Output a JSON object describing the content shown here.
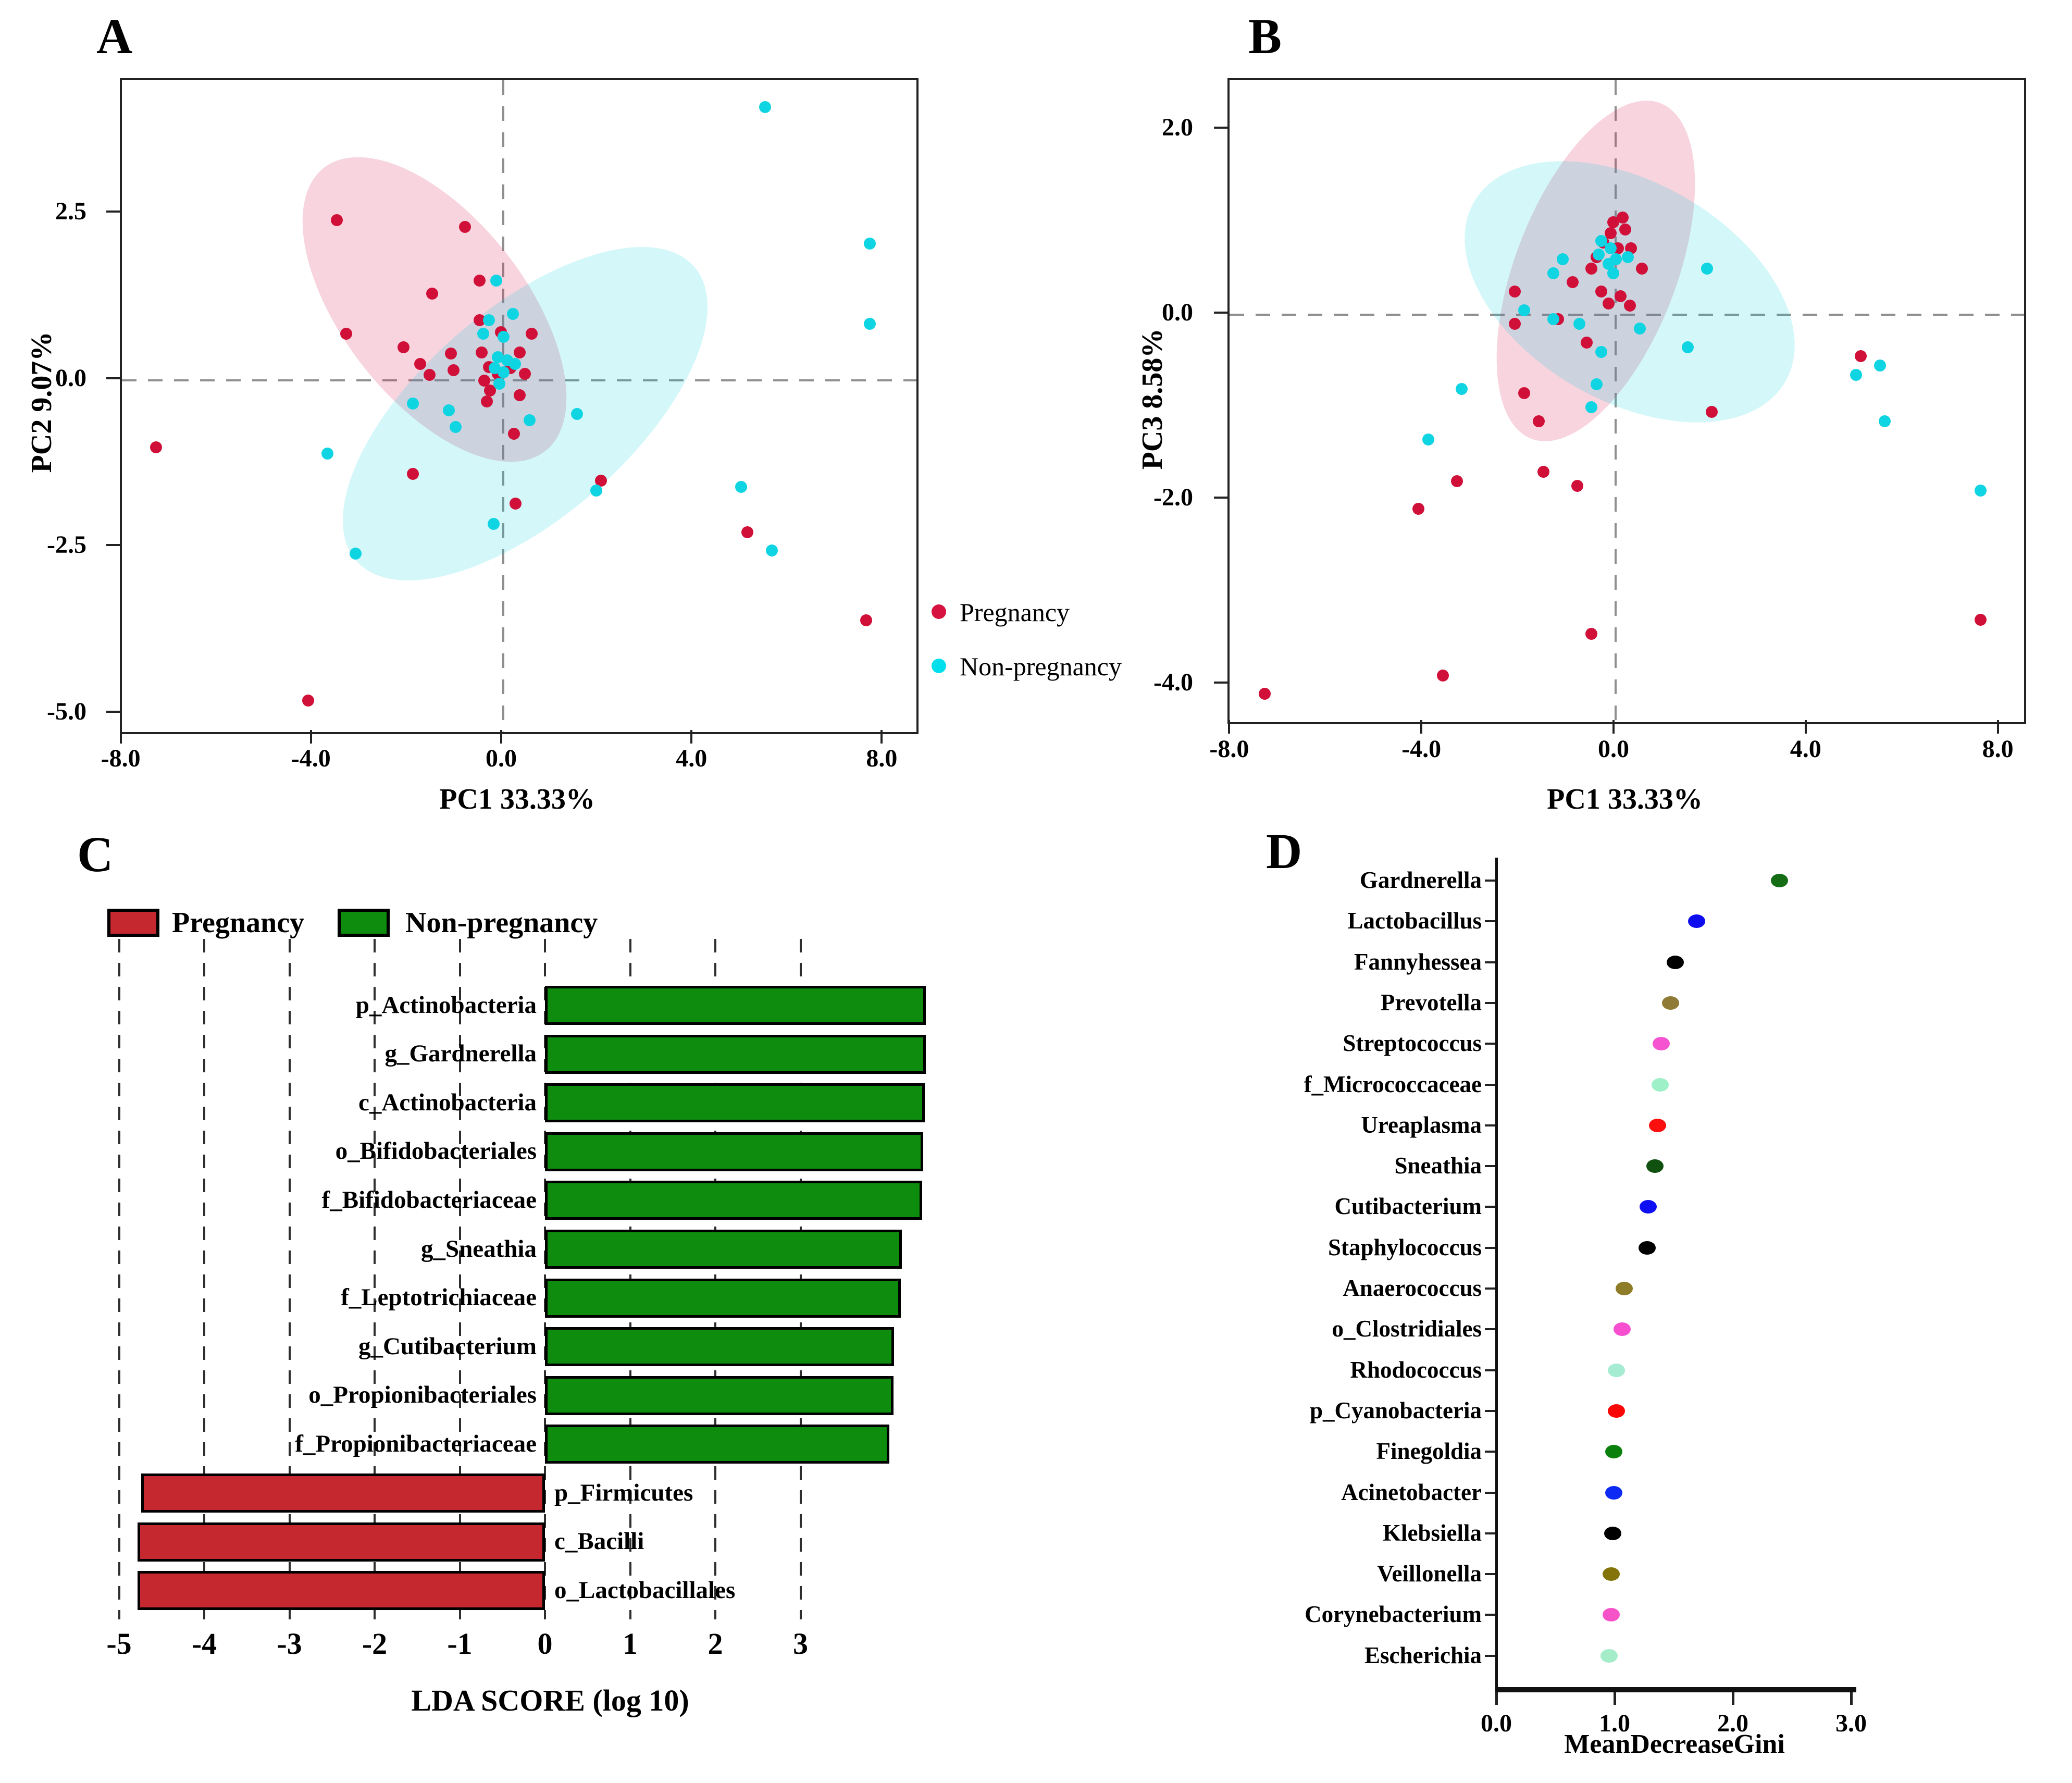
{
  "panels": {
    "a": {
      "letter": "A"
    },
    "b": {
      "letter": "B"
    },
    "c": {
      "letter": "C"
    },
    "d": {
      "letter": "D"
    }
  },
  "legend_ab": {
    "items": [
      {
        "label": "Pregnancy",
        "color": "#d61240"
      },
      {
        "label": "Non-pregnancy",
        "color": "#00dfeb"
      }
    ]
  },
  "chart_data": [
    {
      "panel": "A",
      "type": "scatter",
      "xlabel": "PC1 33.33%",
      "ylabel": "PC2 9.07%",
      "xlim": [
        -8,
        8.7
      ],
      "ylim": [
        -5.3,
        4.5
      ],
      "x_ticks": [
        -8,
        -4,
        0,
        4,
        8
      ],
      "x_tick_labels": [
        "-8.0",
        "-4.0",
        "0.0",
        "4.0",
        "8.0"
      ],
      "y_ticks": [
        2.5,
        0,
        -2.5,
        -5
      ],
      "y_tick_labels": [
        "2.5",
        "0.0",
        "-2.5",
        "-5.0"
      ],
      "grid": "zero-crosshair-dashed",
      "series": [
        {
          "name": "Pregnancy",
          "color": "#d01038",
          "points": [
            [
              -7.3,
              -1.0
            ],
            [
              -4.1,
              -4.8
            ],
            [
              -3.5,
              2.4
            ],
            [
              -3.3,
              0.7
            ],
            [
              -2.1,
              0.5
            ],
            [
              -1.9,
              -1.4
            ],
            [
              -1.75,
              0.25
            ],
            [
              -1.55,
              0.08
            ],
            [
              -1.5,
              1.3
            ],
            [
              -1.1,
              0.4
            ],
            [
              -1.05,
              0.15
            ],
            [
              -0.8,
              2.3
            ],
            [
              -0.5,
              1.5
            ],
            [
              -0.5,
              0.9
            ],
            [
              -0.45,
              0.42
            ],
            [
              -0.4,
              0.0
            ],
            [
              -0.3,
              0.2
            ],
            [
              -0.28,
              -0.15
            ],
            [
              -0.35,
              -0.32
            ],
            [
              -0.12,
              0.1
            ],
            [
              -0.05,
              0.72
            ],
            [
              0.15,
              0.18
            ],
            [
              0.35,
              0.42
            ],
            [
              0.45,
              0.1
            ],
            [
              0.35,
              -0.22
            ],
            [
              0.6,
              0.7
            ],
            [
              0.22,
              -0.8
            ],
            [
              0.26,
              -1.85
            ],
            [
              2.05,
              -1.5
            ],
            [
              5.13,
              -2.28
            ],
            [
              7.63,
              -3.6
            ]
          ]
        },
        {
          "name": "Non-pregnancy",
          "color": "#0fd4e2",
          "points": [
            [
              5.5,
              4.1
            ],
            [
              7.7,
              2.05
            ],
            [
              7.7,
              0.85
            ],
            [
              -0.15,
              1.5
            ],
            [
              0.2,
              1.0
            ],
            [
              -0.3,
              0.9
            ],
            [
              -0.42,
              0.7
            ],
            [
              0.0,
              0.65
            ],
            [
              -0.12,
              0.35
            ],
            [
              0.08,
              0.3
            ],
            [
              0.25,
              0.25
            ],
            [
              0.0,
              0.12
            ],
            [
              -0.08,
              -0.05
            ],
            [
              -0.18,
              0.18
            ],
            [
              -1.9,
              -0.35
            ],
            [
              -1.15,
              -0.45
            ],
            [
              -1.0,
              -0.7
            ],
            [
              0.55,
              -0.6
            ],
            [
              1.55,
              -0.5
            ],
            [
              -3.7,
              -1.1
            ],
            [
              1.95,
              -1.65
            ],
            [
              -0.2,
              -2.15
            ],
            [
              -3.1,
              -2.6
            ],
            [
              5.0,
              -1.6
            ],
            [
              5.65,
              -2.55
            ]
          ]
        }
      ],
      "ellipses": [
        {
          "group": "Pregnancy",
          "fill": "rgba(214,40,90,0.20)"
        },
        {
          "group": "Non-pregnancy",
          "fill": "rgba(0,210,225,0.17)"
        }
      ]
    },
    {
      "panel": "B",
      "type": "scatter",
      "xlabel": "PC1 33.33%",
      "ylabel": "PC3 8.58%",
      "xlim": [
        -8,
        8.5
      ],
      "ylim": [
        -4.4,
        2.5
      ],
      "x_ticks": [
        -8,
        -4,
        0,
        4,
        8
      ],
      "x_tick_labels": [
        "-8.0",
        "-4.0",
        "0.0",
        "4.0",
        "8.0"
      ],
      "y_ticks": [
        2,
        0,
        -2,
        -4
      ],
      "y_tick_labels": [
        "2.0",
        "0.0",
        "-2.0",
        "-4.0"
      ],
      "grid": "zero-crosshair-dashed",
      "series": [
        {
          "name": "Pregnancy",
          "color": "#d01038",
          "points": [
            [
              -7.3,
              -4.1
            ],
            [
              -3.6,
              -3.9
            ],
            [
              -0.5,
              -3.45
            ],
            [
              7.6,
              -3.3
            ],
            [
              -4.1,
              -2.1
            ],
            [
              -3.3,
              -1.8
            ],
            [
              -1.5,
              -1.7
            ],
            [
              -0.8,
              -1.85
            ],
            [
              -1.9,
              -0.85
            ],
            [
              -1.6,
              -1.15
            ],
            [
              5.1,
              -0.45
            ],
            [
              2.0,
              -1.05
            ],
            [
              -2.1,
              0.25
            ],
            [
              -2.1,
              -0.1
            ],
            [
              -1.2,
              -0.05
            ],
            [
              -0.6,
              -0.3
            ],
            [
              -0.9,
              0.35
            ],
            [
              -0.5,
              0.5
            ],
            [
              -0.3,
              0.25
            ],
            [
              -0.15,
              0.12
            ],
            [
              0.1,
              0.2
            ],
            [
              0.3,
              0.1
            ],
            [
              -0.4,
              0.62
            ],
            [
              -0.25,
              0.78
            ],
            [
              -0.1,
              0.88
            ],
            [
              0.05,
              0.72
            ],
            [
              0.2,
              0.92
            ],
            [
              0.32,
              0.72
            ],
            [
              0.15,
              1.05
            ],
            [
              -0.05,
              1.0
            ],
            [
              0.55,
              0.5
            ]
          ]
        },
        {
          "name": "Non-pregnancy",
          "color": "#0fd4e2",
          "points": [
            [
              -3.9,
              -1.35
            ],
            [
              -3.2,
              -0.8
            ],
            [
              -1.3,
              0.45
            ],
            [
              -1.1,
              0.6
            ],
            [
              -0.75,
              -0.1
            ],
            [
              -1.9,
              0.05
            ],
            [
              -1.3,
              -0.05
            ],
            [
              -0.5,
              -1.0
            ],
            [
              -0.4,
              -0.75
            ],
            [
              -0.3,
              -0.4
            ],
            [
              0.5,
              -0.15
            ],
            [
              1.5,
              -0.35
            ],
            [
              1.9,
              0.5
            ],
            [
              -0.3,
              0.8
            ],
            [
              -0.35,
              0.65
            ],
            [
              -0.15,
              0.55
            ],
            [
              -0.1,
              0.72
            ],
            [
              0.0,
              0.6
            ],
            [
              0.25,
              0.62
            ],
            [
              -0.05,
              0.45
            ],
            [
              5.0,
              -0.65
            ],
            [
              5.5,
              -0.55
            ],
            [
              5.6,
              -1.15
            ],
            [
              7.6,
              -1.9
            ]
          ]
        }
      ],
      "ellipses": [
        {
          "group": "Pregnancy",
          "fill": "rgba(214,40,90,0.20)"
        },
        {
          "group": "Non-pregnancy",
          "fill": "rgba(0,210,225,0.17)"
        }
      ]
    },
    {
      "panel": "C",
      "type": "bar",
      "xlabel": "LDA SCORE (log 10)",
      "xlim": [
        -5.2,
        4.6
      ],
      "x_ticks": [
        -5,
        -4,
        -3,
        -2,
        -1,
        0,
        1,
        2,
        3
      ],
      "x_tick_labels": [
        "-5",
        "-4",
        "-3",
        "-2",
        "-1",
        "0",
        "1",
        "2",
        "3"
      ],
      "legend": [
        {
          "name": "Pregnancy",
          "color": "#c5292f"
        },
        {
          "name": "Non-pregnancy",
          "color": "#0d8c0d"
        }
      ],
      "bars": [
        {
          "label": "p_Actinobacteria",
          "value": 4.47,
          "group": "Non-pregnancy"
        },
        {
          "label": "g_Gardnerella",
          "value": 4.47,
          "group": "Non-pregnancy"
        },
        {
          "label": "c_Actinobacteria",
          "value": 4.46,
          "group": "Non-pregnancy"
        },
        {
          "label": "o_Bifidobacteriales",
          "value": 4.44,
          "group": "Non-pregnancy"
        },
        {
          "label": "f_Bifidobacteriaceae",
          "value": 4.43,
          "group": "Non-pregnancy"
        },
        {
          "label": "g_Sneathia",
          "value": 4.19,
          "group": "Non-pregnancy"
        },
        {
          "label": "f_Leptotrichiaceae",
          "value": 4.18,
          "group": "Non-pregnancy"
        },
        {
          "label": "g_Cutibacterium",
          "value": 4.1,
          "group": "Non-pregnancy"
        },
        {
          "label": "o_Propionibacteriales",
          "value": 4.09,
          "group": "Non-pregnancy"
        },
        {
          "label": "f_Propionibacteriaceae",
          "value": 4.04,
          "group": "Non-pregnancy"
        },
        {
          "label": "p_Firmicutes",
          "value": -4.74,
          "group": "Pregnancy"
        },
        {
          "label": "c_Bacilli",
          "value": -4.78,
          "group": "Pregnancy"
        },
        {
          "label": "o_Lactobacillales",
          "value": -4.78,
          "group": "Pregnancy"
        }
      ]
    },
    {
      "panel": "D",
      "type": "dot",
      "xlabel": "MeanDecreaseGini",
      "xlim": [
        0,
        3.1
      ],
      "x_ticks": [
        0,
        1,
        2,
        3
      ],
      "x_tick_labels": [
        "0.0",
        "1.0",
        "2.0",
        "3.0"
      ],
      "points": [
        {
          "label": "Gardnerella",
          "value": 2.4,
          "color": "#156e15"
        },
        {
          "label": "Lactobacillus",
          "value": 1.7,
          "color": "#0d0df0"
        },
        {
          "label": "Fannyhessea",
          "value": 1.52,
          "color": "#000000"
        },
        {
          "label": "Prevotella",
          "value": 1.48,
          "color": "#8f7b35"
        },
        {
          "label": "Streptococcus",
          "value": 1.4,
          "color": "#f553cf"
        },
        {
          "label": "f_Micrococcaceae",
          "value": 1.39,
          "color": "#9df0c8"
        },
        {
          "label": "Ureaplasma",
          "value": 1.37,
          "color": "#fb0f0f"
        },
        {
          "label": "Sneathia",
          "value": 1.35,
          "color": "#10510f"
        },
        {
          "label": "Cutibacterium",
          "value": 1.29,
          "color": "#0f0ff5"
        },
        {
          "label": "Staphylococcus",
          "value": 1.28,
          "color": "#000000"
        },
        {
          "label": "Anaerococcus",
          "value": 1.09,
          "color": "#8f7c28"
        },
        {
          "label": "o_Clostridiales",
          "value": 1.07,
          "color": "#f74fd0"
        },
        {
          "label": "Rhodococcus",
          "value": 1.02,
          "color": "#a5ecd2"
        },
        {
          "label": "p_Cyanobacteria",
          "value": 1.02,
          "color": "#fb0606"
        },
        {
          "label": "Finegoldia",
          "value": 1.0,
          "color": "#0c800c"
        },
        {
          "label": "Acinetobacter",
          "value": 1.0,
          "color": "#0d2af5"
        },
        {
          "label": "Klebsiella",
          "value": 0.99,
          "color": "#000000"
        },
        {
          "label": "Veillonella",
          "value": 0.98,
          "color": "#837308"
        },
        {
          "label": "Corynebacterium",
          "value": 0.98,
          "color": "#f653c8"
        },
        {
          "label": "Escherichia",
          "value": 0.96,
          "color": "#a5ecc9"
        }
      ]
    }
  ]
}
